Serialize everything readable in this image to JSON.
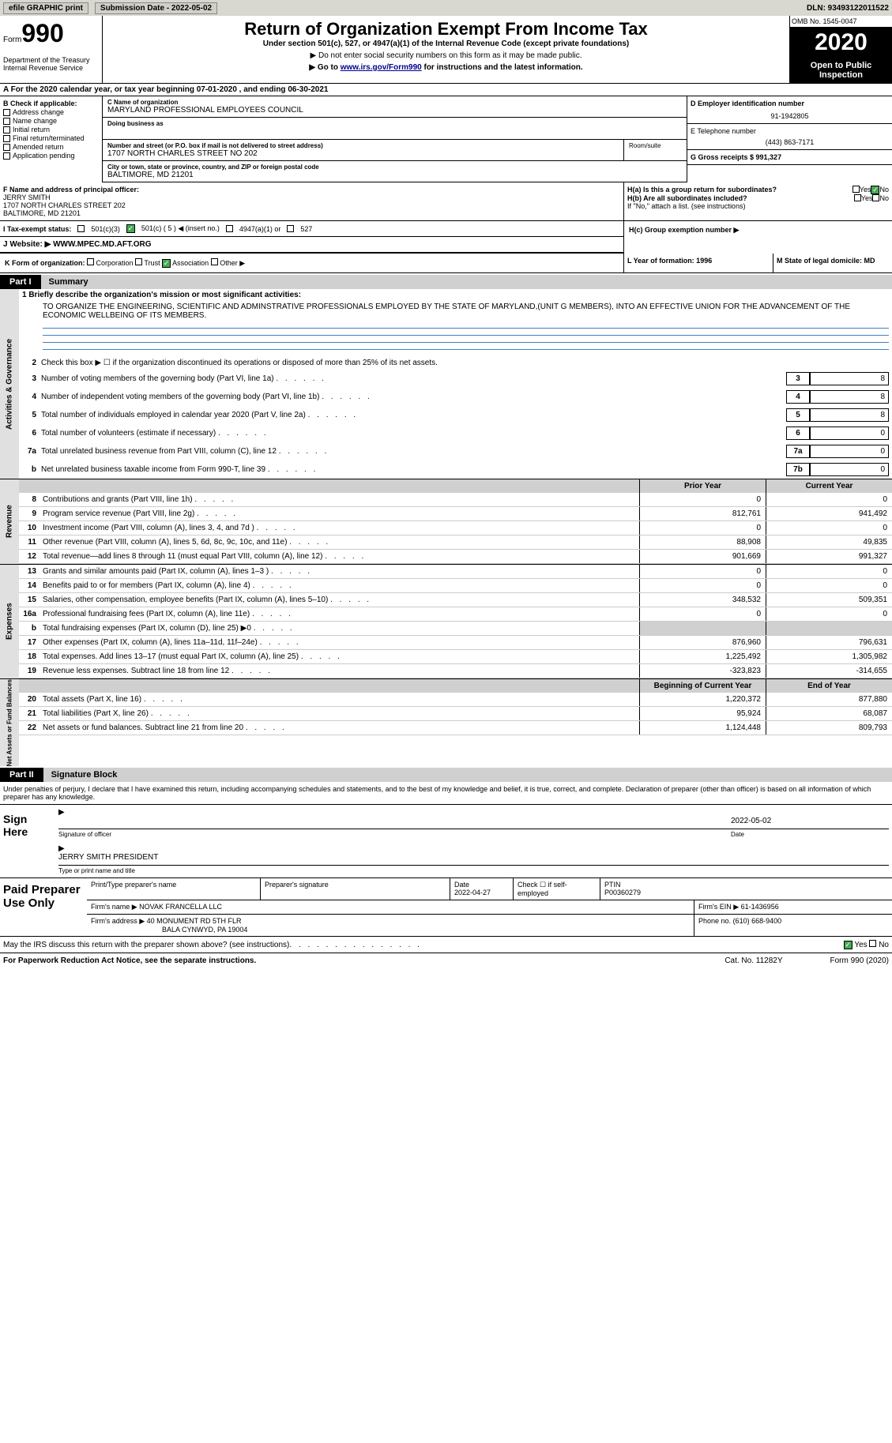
{
  "topbar": {
    "efile": "efile GRAPHIC print",
    "submission_label": "Submission Date - 2022-05-02",
    "dln": "DLN: 93493122011522"
  },
  "header": {
    "form_word": "Form",
    "form_num": "990",
    "dept": "Department of the Treasury\nInternal Revenue Service",
    "title": "Return of Organization Exempt From Income Tax",
    "subtitle": "Under section 501(c), 527, or 4947(a)(1) of the Internal Revenue Code (except private foundations)",
    "sub2": "▶ Do not enter social security numbers on this form as it may be made public.",
    "sub3_pre": "▶ Go to ",
    "sub3_link": "www.irs.gov/Form990",
    "sub3_post": " for instructions and the latest information.",
    "omb": "OMB No. 1545-0047",
    "year": "2020",
    "open": "Open to Public Inspection"
  },
  "row_a": "A For the 2020 calendar year, or tax year beginning 07-01-2020   , and ending 06-30-2021",
  "section_b": {
    "label": "B Check if applicable:",
    "items": [
      "Address change",
      "Name change",
      "Initial return",
      "Final return/terminated",
      "Amended return",
      "Application pending"
    ]
  },
  "section_c": {
    "name_label": "C Name of organization",
    "name": "MARYLAND PROFESSIONAL EMPLOYEES COUNCIL",
    "dba_label": "Doing business as",
    "addr_label": "Number and street (or P.O. box if mail is not delivered to street address)",
    "room_label": "Room/suite",
    "addr": "1707 NORTH CHARLES STREET NO 202",
    "city_label": "City or town, state or province, country, and ZIP or foreign postal code",
    "city": "BALTIMORE, MD  21201"
  },
  "section_d": {
    "label": "D Employer identification number",
    "value": "91-1942805"
  },
  "section_e": {
    "label": "E Telephone number",
    "value": "(443) 863-7171"
  },
  "section_g": {
    "label": "G Gross receipts $ 991,327"
  },
  "section_f": {
    "label": "F  Name and address of principal officer:",
    "name": "JERRY SMITH",
    "addr1": "1707 NORTH CHARLES STREET 202",
    "addr2": "BALTIMORE, MD  21201"
  },
  "section_h": {
    "ha": "H(a)  Is this a group return for subordinates?",
    "hb": "H(b)  Are all subordinates included?",
    "hb_note": "If \"No,\" attach a list. (see instructions)",
    "hc": "H(c)  Group exemption number ▶",
    "yes": "Yes",
    "no": "No"
  },
  "section_i": {
    "label": "I    Tax-exempt status:",
    "opt1": "501(c)(3)",
    "opt2": "501(c) ( 5 ) ◀ (insert no.)",
    "opt3": "4947(a)(1) or",
    "opt4": "527"
  },
  "section_j": {
    "label": "J    Website: ▶",
    "value": "WWW.MPEC.MD.AFT.ORG"
  },
  "section_k": {
    "label": "K Form of organization:",
    "opts": [
      "Corporation",
      "Trust",
      "Association",
      "Other ▶"
    ]
  },
  "section_l": {
    "label": "L Year of formation: 1996"
  },
  "section_m": {
    "label": "M State of legal domicile: MD"
  },
  "part1": {
    "num": "Part I",
    "title": "Summary"
  },
  "mission": {
    "label": "1  Briefly describe the organization's mission or most significant activities:",
    "text": "TO ORGANIZE THE ENGINEERING, SCIENTIFIC AND ADMINSTRATIVE PROFESSIONALS EMPLOYED BY THE STATE OF MARYLAND,(UNIT G MEMBERS), INTO AN EFFECTIVE UNION FOR THE ADVANCEMENT OF THE ECONOMIC WELLBEING OF ITS MEMBERS."
  },
  "line2": "Check this box ▶ ☐  if the organization discontinued its operations or disposed of more than 25% of its net assets.",
  "gov_lines": [
    {
      "n": "3",
      "t": "Number of voting members of the governing body (Part VI, line 1a)",
      "c": "3",
      "v": "8"
    },
    {
      "n": "4",
      "t": "Number of independent voting members of the governing body (Part VI, line 1b)",
      "c": "4",
      "v": "8"
    },
    {
      "n": "5",
      "t": "Total number of individuals employed in calendar year 2020 (Part V, line 2a)",
      "c": "5",
      "v": "8"
    },
    {
      "n": "6",
      "t": "Total number of volunteers (estimate if necessary)",
      "c": "6",
      "v": "0"
    },
    {
      "n": "7a",
      "t": "Total unrelated business revenue from Part VIII, column (C), line 12",
      "c": "7a",
      "v": "0"
    },
    {
      "n": "b",
      "t": "Net unrelated business taxable income from Form 990-T, line 39",
      "c": "7b",
      "v": "0"
    }
  ],
  "col_headers": {
    "prior": "Prior Year",
    "current": "Current Year"
  },
  "revenue_lines": [
    {
      "n": "8",
      "t": "Contributions and grants (Part VIII, line 1h)",
      "p": "0",
      "c": "0"
    },
    {
      "n": "9",
      "t": "Program service revenue (Part VIII, line 2g)",
      "p": "812,761",
      "c": "941,492"
    },
    {
      "n": "10",
      "t": "Investment income (Part VIII, column (A), lines 3, 4, and 7d )",
      "p": "0",
      "c": "0"
    },
    {
      "n": "11",
      "t": "Other revenue (Part VIII, column (A), lines 5, 6d, 8c, 9c, 10c, and 11e)",
      "p": "88,908",
      "c": "49,835"
    },
    {
      "n": "12",
      "t": "Total revenue—add lines 8 through 11 (must equal Part VIII, column (A), line 12)",
      "p": "901,669",
      "c": "991,327"
    }
  ],
  "expense_lines": [
    {
      "n": "13",
      "t": "Grants and similar amounts paid (Part IX, column (A), lines 1–3 )",
      "p": "0",
      "c": "0"
    },
    {
      "n": "14",
      "t": "Benefits paid to or for members (Part IX, column (A), line 4)",
      "p": "0",
      "c": "0"
    },
    {
      "n": "15",
      "t": "Salaries, other compensation, employee benefits (Part IX, column (A), lines 5–10)",
      "p": "348,532",
      "c": "509,351"
    },
    {
      "n": "16a",
      "t": "Professional fundraising fees (Part IX, column (A), line 11e)",
      "p": "0",
      "c": "0"
    },
    {
      "n": "b",
      "t": "Total fundraising expenses (Part IX, column (D), line 25) ▶0",
      "p": "",
      "c": "",
      "shaded": true
    },
    {
      "n": "17",
      "t": "Other expenses (Part IX, column (A), lines 11a–11d, 11f–24e)",
      "p": "876,960",
      "c": "796,631"
    },
    {
      "n": "18",
      "t": "Total expenses. Add lines 13–17 (must equal Part IX, column (A), line 25)",
      "p": "1,225,492",
      "c": "1,305,982"
    },
    {
      "n": "19",
      "t": "Revenue less expenses. Subtract line 18 from line 12",
      "p": "-323,823",
      "c": "-314,655"
    }
  ],
  "net_headers": {
    "beg": "Beginning of Current Year",
    "end": "End of Year"
  },
  "net_lines": [
    {
      "n": "20",
      "t": "Total assets (Part X, line 16)",
      "p": "1,220,372",
      "c": "877,880"
    },
    {
      "n": "21",
      "t": "Total liabilities (Part X, line 26)",
      "p": "95,924",
      "c": "68,087"
    },
    {
      "n": "22",
      "t": "Net assets or fund balances. Subtract line 21 from line 20",
      "p": "1,124,448",
      "c": "809,793"
    }
  ],
  "sidebars": {
    "gov": "Activities & Governance",
    "rev": "Revenue",
    "exp": "Expenses",
    "net": "Net Assets or Fund Balances"
  },
  "part2": {
    "num": "Part II",
    "title": "Signature Block"
  },
  "penalties": "Under penalties of perjury, I declare that I have examined this return, including accompanying schedules and statements, and to the best of my knowledge and belief, it is true, correct, and complete. Declaration of preparer (other than officer) is based on all information of which preparer has any knowledge.",
  "sign": {
    "label": "Sign Here",
    "sig_label": "Signature of officer",
    "date": "2022-05-02",
    "date_label": "Date",
    "name": "JERRY SMITH  PRESIDENT",
    "name_label": "Type or print name and title"
  },
  "paid": {
    "label": "Paid Preparer Use Only",
    "h1": "Print/Type preparer's name",
    "h2": "Preparer's signature",
    "h3": "Date",
    "date": "2022-04-27",
    "h4": "Check ☐ if self-employed",
    "h5": "PTIN",
    "ptin": "P00360279",
    "firm_label": "Firm's name    ▶",
    "firm": "NOVAK FRANCELLA LLC",
    "ein_label": "Firm's EIN ▶",
    "ein": "61-1436956",
    "addr_label": "Firm's address ▶",
    "addr": "40 MONUMENT RD 5TH FLR",
    "addr2": "BALA CYNWYD, PA  19004",
    "phone_label": "Phone no.",
    "phone": "(610) 668-9400"
  },
  "discuss": "May the IRS discuss this return with the preparer shown above? (see instructions)",
  "footer": {
    "left": "For Paperwork Reduction Act Notice, see the separate instructions.",
    "mid": "Cat. No. 11282Y",
    "right": "Form 990 (2020)"
  }
}
